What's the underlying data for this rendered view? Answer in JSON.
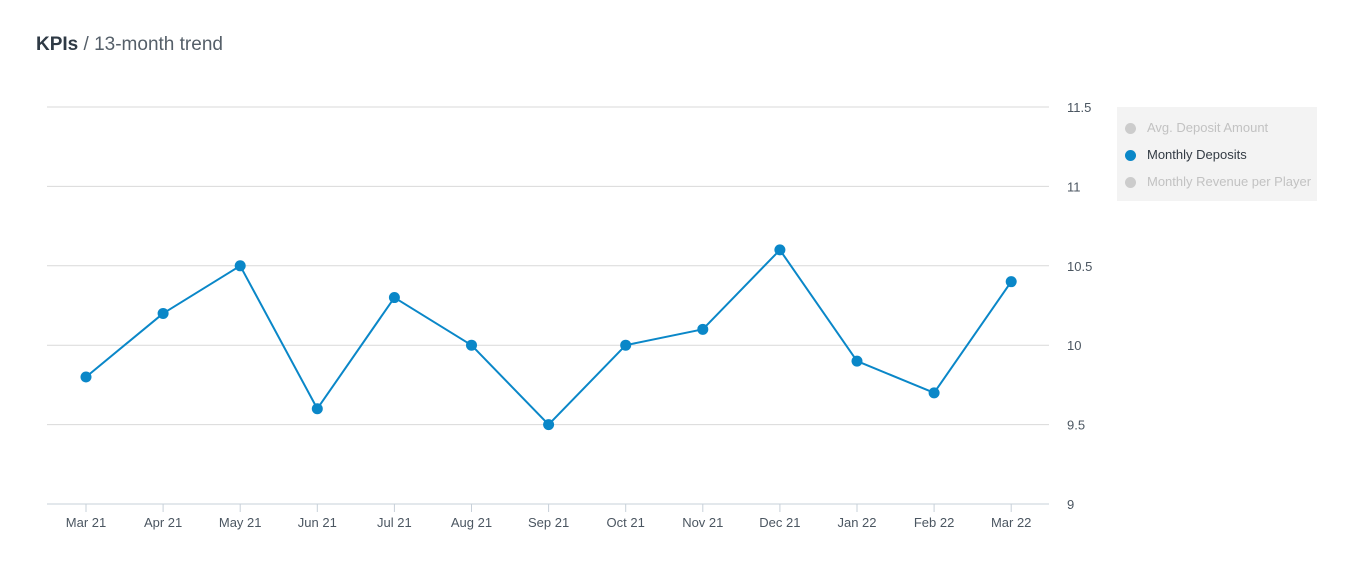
{
  "header": {
    "title_strong": "KPIs",
    "separator": " / ",
    "title_light": "13-month trend"
  },
  "legend": {
    "items": [
      {
        "label": "Avg. Deposit Amount",
        "active": false
      },
      {
        "label": "Monthly Deposits",
        "active": true
      },
      {
        "label": "Monthly Revenue per Player",
        "active": false
      }
    ]
  },
  "colors": {
    "series": "#0a87c8",
    "grid": "#d9d9d9",
    "axis": "#c7d0d9",
    "inactive_legend": "#cccccc"
  },
  "chart_data": {
    "type": "line",
    "categories": [
      "Mar 21",
      "Apr 21",
      "May 21",
      "Jun 21",
      "Jul 21",
      "Aug 21",
      "Sep 21",
      "Oct 21",
      "Nov 21",
      "Dec 21",
      "Jan 22",
      "Feb 22",
      "Mar 22"
    ],
    "series": [
      {
        "name": "Monthly Deposits",
        "values": [
          9.8,
          10.2,
          10.5,
          9.6,
          10.3,
          10.0,
          9.5,
          10.0,
          10.1,
          10.6,
          9.9,
          9.7,
          10.4
        ]
      }
    ],
    "yticks": [
      "9",
      "9.5",
      "10",
      "10.5",
      "11",
      "11.5"
    ],
    "ylim": [
      9,
      11.5
    ],
    "y_axis_position": "right",
    "grid": true,
    "legend_position": "right"
  }
}
